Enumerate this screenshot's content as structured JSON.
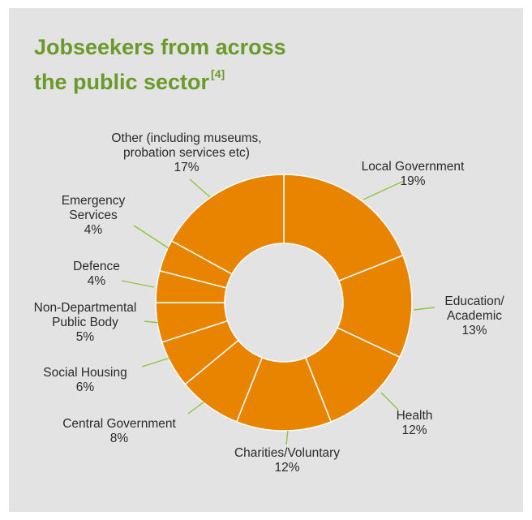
{
  "chart_data": {
    "type": "pie",
    "donut": true,
    "title_line1": "Jobseekers from across",
    "title_line2": "the public sector",
    "title_note": "[4]",
    "slice_color": "#e88400",
    "title_color": "#6a9a2a",
    "leader_color": "#8cc63f",
    "slices": [
      {
        "label": [
          "Local Government"
        ],
        "value": 19,
        "pct": "19%"
      },
      {
        "label": [
          "Education/",
          "Academic"
        ],
        "value": 13,
        "pct": "13%"
      },
      {
        "label": [
          "Health"
        ],
        "value": 12,
        "pct": "12%"
      },
      {
        "label": [
          "Charities/Voluntary"
        ],
        "value": 12,
        "pct": "12%"
      },
      {
        "label": [
          "Central Government"
        ],
        "value": 8,
        "pct": "8%"
      },
      {
        "label": [
          "Social Housing"
        ],
        "value": 6,
        "pct": "6%"
      },
      {
        "label": [
          "Non-Departmental",
          "Public Body"
        ],
        "value": 5,
        "pct": "5%"
      },
      {
        "label": [
          "Defence"
        ],
        "value": 4,
        "pct": "4%"
      },
      {
        "label": [
          "Emergency",
          "Services"
        ],
        "value": 4,
        "pct": "4%"
      },
      {
        "label": [
          "Other (including museums,",
          "probation services etc)"
        ],
        "value": 17,
        "pct": "17%"
      }
    ]
  }
}
